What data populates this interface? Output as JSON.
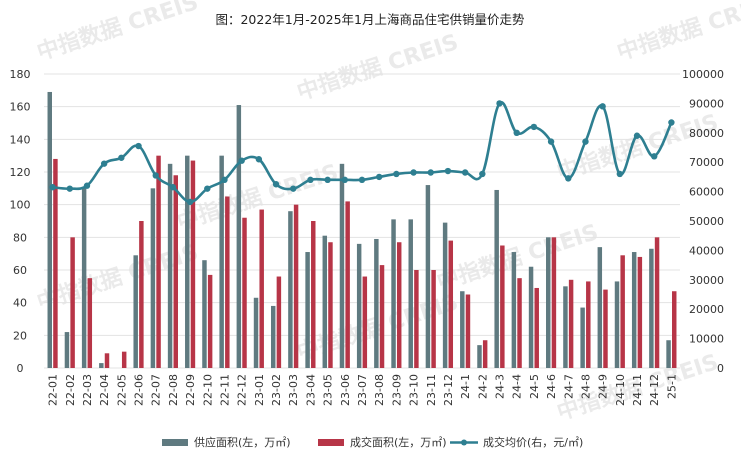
{
  "chart_data": {
    "type": "bar",
    "title": "图：2022年1月-2025年1月上海商品住宅供销量价走势",
    "categories": [
      "22-01",
      "22-02",
      "22-03",
      "22-04",
      "22-05",
      "22-06",
      "22-07",
      "22-08",
      "22-09",
      "22-10",
      "22-11",
      "22-12",
      "23-01",
      "23-02",
      "23-03",
      "23-04",
      "23-05",
      "23-06",
      "23-07",
      "23-08",
      "23-09",
      "23-10",
      "23-11",
      "23-12",
      "24-1",
      "24-2",
      "24-3",
      "24-4",
      "24-5",
      "24-6",
      "24-7",
      "24-8",
      "24-9",
      "24-10",
      "24-11",
      "24-12",
      "25-1"
    ],
    "left_axis": {
      "min": 0,
      "max": 180,
      "ticks": [
        "0",
        "20",
        "40",
        "60",
        "80",
        "100",
        "120",
        "140",
        "160",
        "180"
      ]
    },
    "right_axis": {
      "min": 0,
      "max": 100000,
      "ticks": [
        "0",
        "10000",
        "20000",
        "30000",
        "40000",
        "50000",
        "60000",
        "70000",
        "80000",
        "90000",
        "100000"
      ]
    },
    "series": [
      {
        "name": "供应面积(左，万㎡)",
        "type": "bar",
        "axis": "left",
        "color": "#5f7a80",
        "values": [
          169,
          22,
          111,
          3,
          0,
          69,
          110,
          125,
          130,
          66,
          130,
          161,
          43,
          38,
          96,
          71,
          81,
          125,
          76,
          79,
          91,
          91,
          112,
          89,
          47,
          14,
          109,
          71,
          62,
          80,
          50,
          37,
          74,
          53,
          71,
          73,
          17
        ]
      },
      {
        "name": "成交面积(左，万㎡)",
        "type": "bar",
        "axis": "left",
        "color": "#b73547",
        "values": [
          128,
          80,
          55,
          9,
          10,
          90,
          130,
          118,
          127,
          57,
          105,
          92,
          97,
          56,
          100,
          90,
          77,
          102,
          56,
          63,
          77,
          60,
          60,
          78,
          45,
          17,
          75,
          55,
          49,
          80,
          54,
          53,
          48,
          69,
          68,
          80,
          47
        ]
      },
      {
        "name": "成交均价(右，元/㎡)",
        "type": "line",
        "axis": "right",
        "color": "#2e7f91",
        "values": [
          61500,
          61000,
          62000,
          69500,
          71500,
          75500,
          65500,
          61500,
          56500,
          61000,
          64000,
          70500,
          71000,
          62500,
          61000,
          64000,
          64000,
          64000,
          64000,
          65000,
          66000,
          66500,
          66500,
          67000,
          66500,
          66000,
          90000,
          80000,
          82000,
          77000,
          64500,
          77000,
          89000,
          66000,
          79000,
          72000,
          83500
        ]
      }
    ],
    "legend_position": "bottom",
    "grid": true
  },
  "watermark": "中指数据 CREIS"
}
